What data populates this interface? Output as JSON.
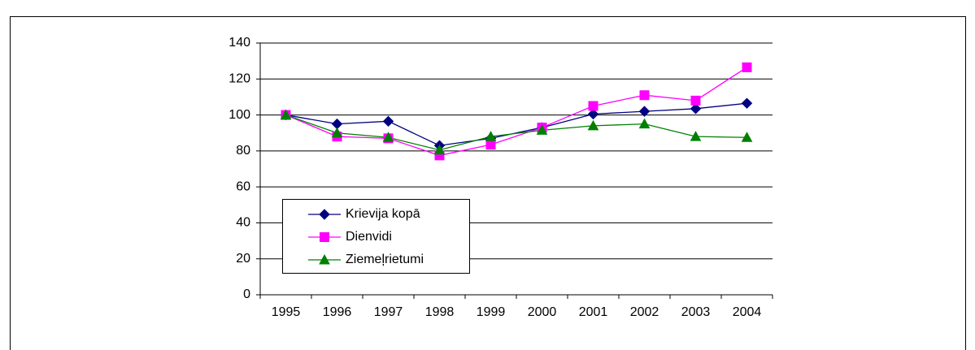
{
  "chart_data": {
    "type": "line",
    "categories": [
      "1995",
      "1996",
      "1997",
      "1998",
      "1999",
      "2000",
      "2001",
      "2002",
      "2003",
      "2004"
    ],
    "series": [
      {
        "name": "Krievija kopā",
        "color": "#000080",
        "marker": "diamond",
        "values": [
          100,
          95,
          96.5,
          83,
          87,
          93,
          100.5,
          102,
          103.5,
          106.5
        ]
      },
      {
        "name": "Dienvidi",
        "color": "#ff00ff",
        "marker": "square",
        "values": [
          100,
          88,
          87,
          77.5,
          83.5,
          93,
          105,
          111,
          108,
          126.5
        ]
      },
      {
        "name": "Ziemeļrietumi",
        "color": "#008000",
        "marker": "triangle",
        "values": [
          100,
          90,
          87.5,
          80.5,
          88,
          91.5,
          94,
          95,
          88,
          87.5
        ]
      }
    ],
    "ylim": [
      0,
      140
    ],
    "yticks": [
      0,
      20,
      40,
      60,
      80,
      100,
      120,
      140
    ],
    "grid": true,
    "legend": "lower left"
  }
}
